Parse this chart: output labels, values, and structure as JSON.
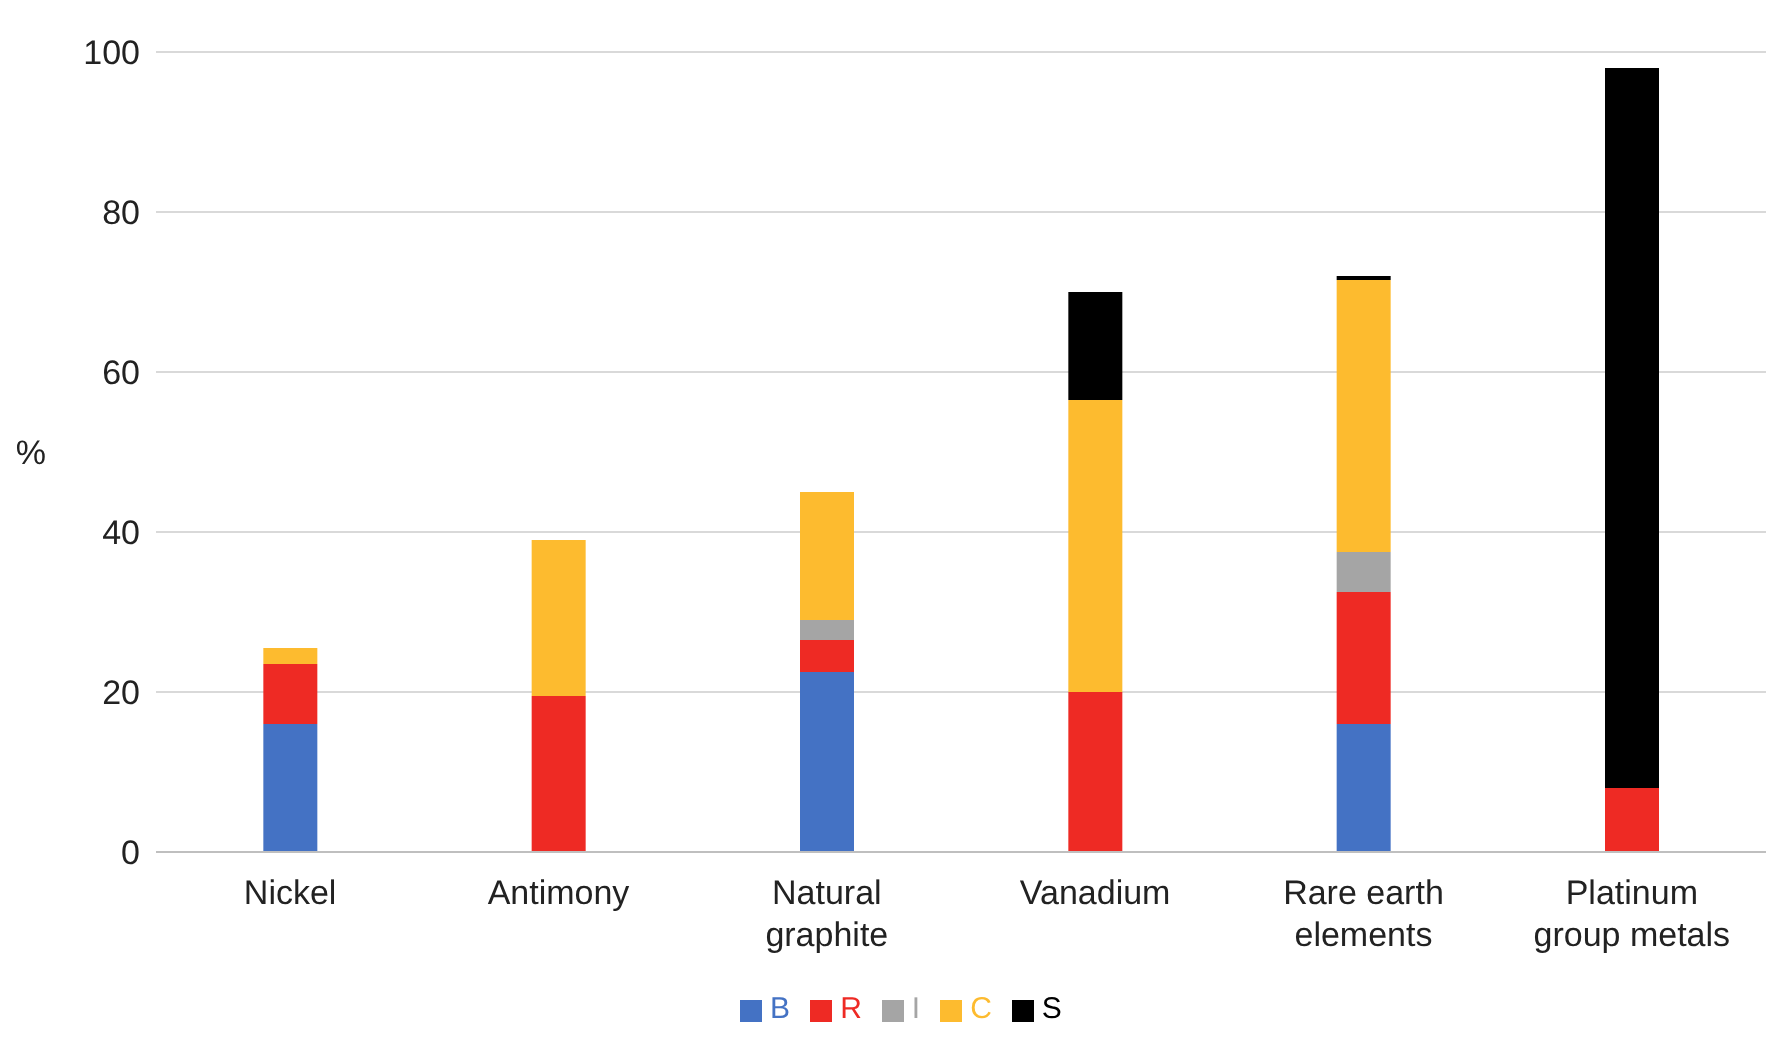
{
  "chart_data": {
    "type": "bar",
    "stacked": true,
    "ylabel": "%",
    "categories": [
      "Nickel",
      "Antimony",
      "Natural graphite",
      "Vanadium",
      "Rare earth elements",
      "Platinum group metals"
    ],
    "series": [
      {
        "name": "B",
        "color": "#4472c4",
        "values": [
          16,
          0,
          22.5,
          0,
          16,
          0
        ]
      },
      {
        "name": "R",
        "color": "#ee2a24",
        "values": [
          7.5,
          19.5,
          4,
          20,
          16.5,
          8
        ]
      },
      {
        "name": "I",
        "color": "#a5a5a5",
        "values": [
          0,
          0,
          2.5,
          0,
          5,
          0
        ]
      },
      {
        "name": "C",
        "color": "#fdbb2f",
        "values": [
          2,
          19.5,
          16,
          36.5,
          34,
          0
        ]
      },
      {
        "name": "S",
        "color": "#000000",
        "values": [
          0,
          0,
          0,
          13.5,
          0.5,
          90
        ]
      }
    ],
    "ylim": [
      0,
      100
    ],
    "yticks": [
      0,
      20,
      40,
      60,
      80,
      100
    ],
    "grid": "y",
    "legend": "bottom"
  }
}
